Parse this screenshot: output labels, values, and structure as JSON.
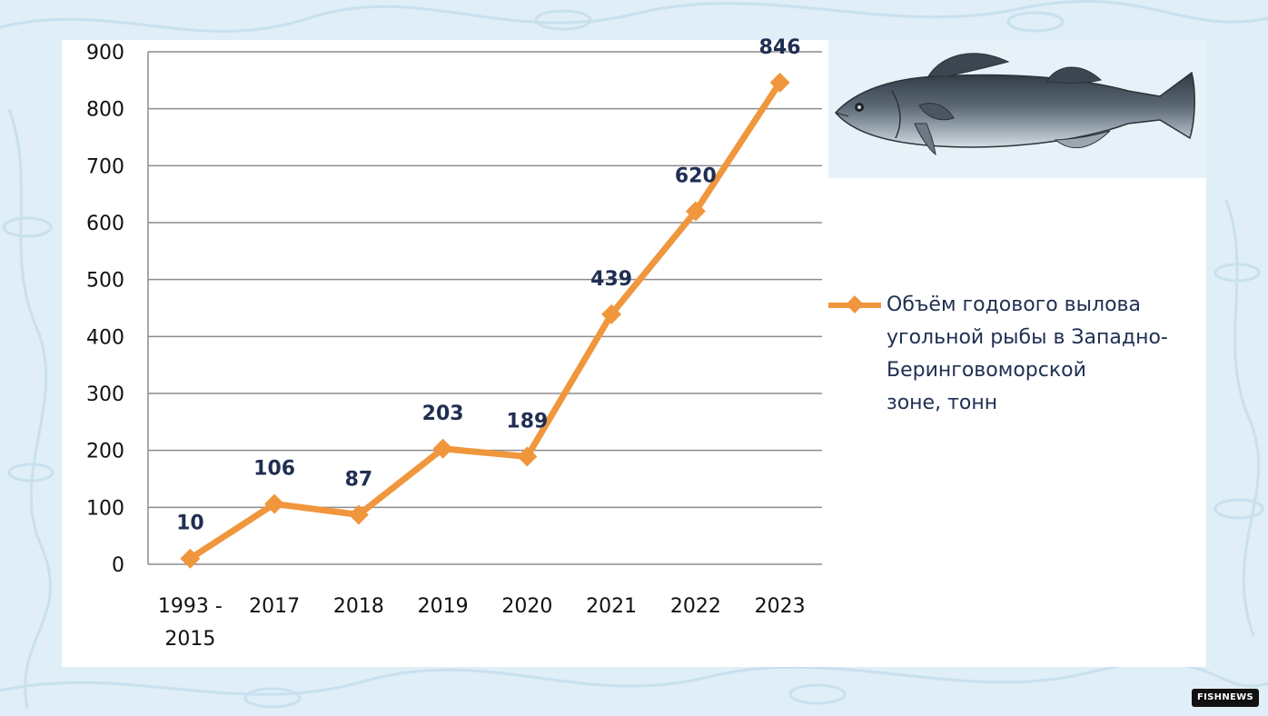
{
  "chart_data": {
    "type": "line",
    "categories": [
      "1993 -\n2015",
      "2017",
      "2018",
      "2019",
      "2020",
      "2021",
      "2022",
      "2023"
    ],
    "series": [
      {
        "name": "Объём годового вылова угольной рыбы в Западно-Беринговоморской зоне, тонн",
        "values": [
          10,
          106,
          87,
          203,
          189,
          439,
          620,
          846
        ]
      }
    ],
    "ylim": [
      0,
      900
    ],
    "yticks": [
      0,
      100,
      200,
      300,
      400,
      500,
      600,
      700,
      800,
      900
    ],
    "grid": true,
    "legend": "right",
    "data_labels": true
  },
  "legend": {
    "lines": [
      "Объём годового вылова",
      "угольной рыбы в Западно-",
      "Беринговоморской",
      "зоне, тонн"
    ]
  },
  "colors": {
    "line": "#f0963c",
    "label": "#1f2f52",
    "grid": "#8c8c8c",
    "background": "#dfeef7"
  },
  "icons": {
    "illustration": "sablefish-icon"
  },
  "logo": {
    "text": "FISHNEWS"
  }
}
